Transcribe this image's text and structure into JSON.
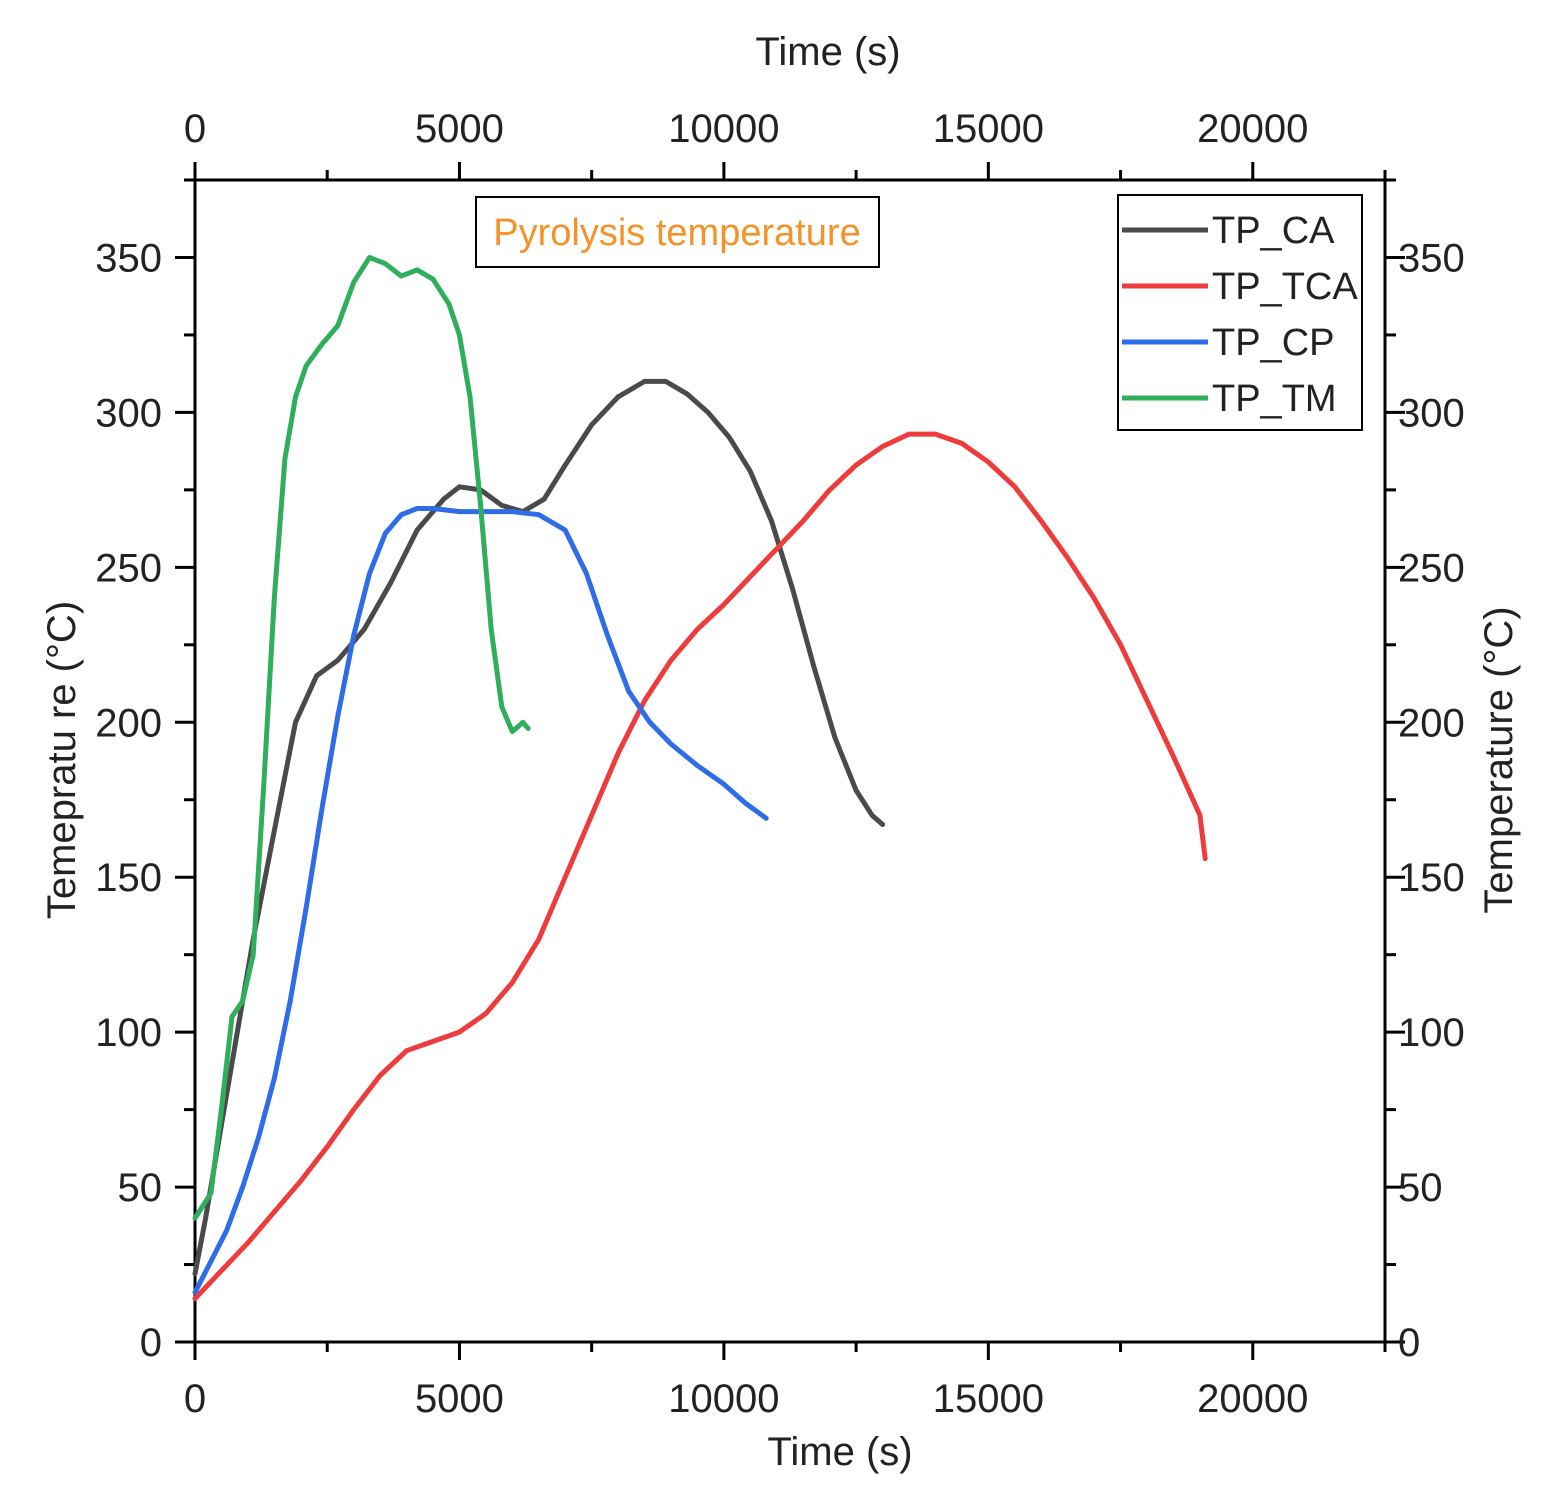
{
  "chart_data": {
    "type": "line",
    "title": "",
    "xlabel_bottom": "Time (s)",
    "xlabel_top": "Time (s)",
    "ylabel_left": "Temepratu re (°C)",
    "ylabel_right": "Temperature (°C)",
    "xlim": [
      0,
      22500
    ],
    "ylim": [
      0,
      375
    ],
    "x_ticks": [
      0,
      5000,
      10000,
      15000,
      20000
    ],
    "x_tick_labels": [
      "0",
      "5000",
      "10000",
      "15000",
      "20000"
    ],
    "y_ticks": [
      0,
      50,
      100,
      150,
      200,
      250,
      300,
      350
    ],
    "y_tick_labels": [
      "0",
      "50",
      "100",
      "150",
      "200",
      "250",
      "300",
      "350"
    ],
    "grid": false,
    "legend_position": "top-right",
    "annotation": "Pyrolysis temperature",
    "series": [
      {
        "name": "TP_CA",
        "color": "#4a4a4a",
        "x": [
          0,
          200,
          500,
          800,
          1100,
          1500,
          1900,
          2300,
          2700,
          3200,
          3700,
          4200,
          4700,
          5000,
          5400,
          5800,
          6200,
          6600,
          7000,
          7500,
          8000,
          8500,
          8900,
          9300,
          9700,
          10100,
          10500,
          10900,
          11300,
          11700,
          12100,
          12500,
          12800,
          13000
        ],
        "y": [
          22,
          40,
          70,
          100,
          130,
          165,
          200,
          215,
          220,
          230,
          245,
          262,
          272,
          276,
          275,
          270,
          268,
          272,
          283,
          296,
          305,
          310,
          310,
          306,
          300,
          292,
          281,
          265,
          243,
          218,
          195,
          178,
          170,
          167
        ]
      },
      {
        "name": "TP_TCA",
        "color": "#ee3b3b",
        "x": [
          0,
          500,
          1000,
          1500,
          2000,
          2500,
          3000,
          3500,
          4000,
          4500,
          5000,
          5500,
          6000,
          6500,
          7000,
          7500,
          8000,
          8500,
          9000,
          9500,
          10000,
          10500,
          11000,
          11500,
          12000,
          12500,
          13000,
          13500,
          14000,
          14500,
          15000,
          15500,
          16000,
          16500,
          17000,
          17500,
          18000,
          18500,
          19000,
          19100
        ],
        "y": [
          14,
          23,
          32,
          42,
          52,
          63,
          75,
          86,
          94,
          97,
          100,
          106,
          116,
          130,
          150,
          170,
          190,
          207,
          220,
          230,
          238,
          247,
          256,
          265,
          275,
          283,
          289,
          293,
          293,
          290,
          284,
          276,
          265,
          253,
          240,
          225,
          207,
          189,
          170,
          156
        ]
      },
      {
        "name": "TP_CP",
        "color": "#2f6de8",
        "x": [
          0,
          300,
          600,
          900,
          1200,
          1500,
          1800,
          2100,
          2400,
          2700,
          3000,
          3300,
          3600,
          3900,
          4200,
          4500,
          5000,
          5500,
          6000,
          6500,
          7000,
          7400,
          7800,
          8200,
          8600,
          9000,
          9500,
          10000,
          10400,
          10800
        ],
        "y": [
          16,
          26,
          36,
          50,
          66,
          85,
          110,
          140,
          172,
          202,
          228,
          248,
          261,
          267,
          269,
          269,
          268,
          268,
          268,
          267,
          262,
          248,
          228,
          210,
          200,
          193,
          186,
          180,
          174,
          169
        ]
      },
      {
        "name": "TP_TM",
        "color": "#2fae5c",
        "x": [
          0,
          300,
          500,
          700,
          900,
          1100,
          1300,
          1500,
          1700,
          1900,
          2100,
          2400,
          2700,
          3000,
          3300,
          3600,
          3900,
          4200,
          4500,
          4800,
          5000,
          5200,
          5400,
          5600,
          5800,
          6000,
          6200,
          6300
        ],
        "y": [
          40,
          48,
          75,
          105,
          110,
          125,
          180,
          240,
          285,
          305,
          315,
          322,
          328,
          342,
          350,
          348,
          344,
          346,
          343,
          335,
          325,
          305,
          270,
          230,
          205,
          197,
          200,
          198
        ]
      }
    ]
  }
}
